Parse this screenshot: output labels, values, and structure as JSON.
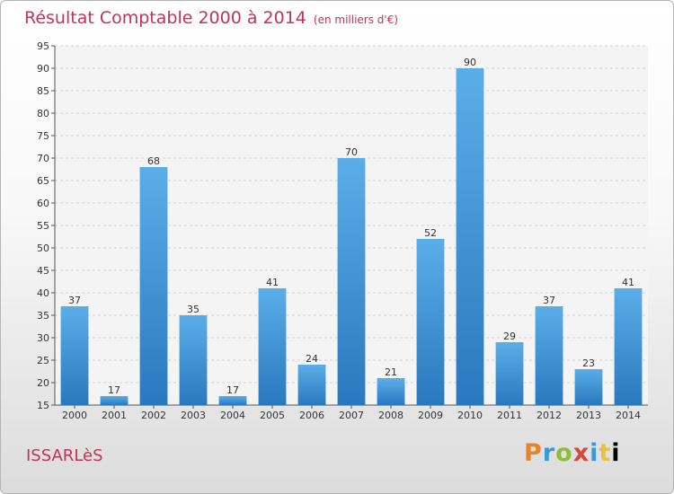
{
  "header": {
    "title": "Résultat Comptable 2000 à 2014",
    "unit": "(en milliers d'€)"
  },
  "footer": {
    "town": "ISSARLèS",
    "logo_letters": [
      "P",
      "r",
      "o",
      "x",
      "i",
      "t",
      "i"
    ]
  },
  "colors": {
    "title": "#c0335a",
    "bar_top": "#5aaee8",
    "bar_bottom": "#2a78be"
  },
  "chart_data": {
    "type": "bar",
    "title": "Résultat Comptable 2000 à 2014",
    "xlabel": "",
    "ylabel": "",
    "categories": [
      "2000",
      "2001",
      "2002",
      "2003",
      "2004",
      "2005",
      "2006",
      "2007",
      "2008",
      "2009",
      "2010",
      "2011",
      "2012",
      "2013",
      "2014"
    ],
    "values": [
      37,
      17,
      68,
      35,
      17,
      41,
      24,
      70,
      21,
      52,
      90,
      29,
      37,
      23,
      41
    ],
    "ylim": [
      15,
      95
    ],
    "yticks": [
      15,
      20,
      25,
      30,
      35,
      40,
      45,
      50,
      55,
      60,
      65,
      70,
      75,
      80,
      85,
      90,
      95
    ],
    "grid": true,
    "legend": "none"
  }
}
